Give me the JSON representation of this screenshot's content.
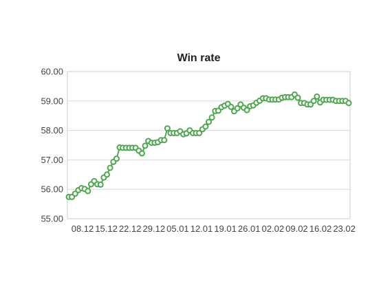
{
  "chart_data": {
    "type": "line",
    "title": "Win rate",
    "xlabel": "",
    "ylabel": "",
    "ylim": [
      55,
      60
    ],
    "y_ticks": [
      "55.00",
      "56.00",
      "57.00",
      "58.00",
      "59.00",
      "60.00"
    ],
    "x_tick_labels": [
      "08.12",
      "15.12",
      "22.12",
      "29.12",
      "05.01",
      "12.01",
      "19.01",
      "26.01",
      "02.02",
      "09.02",
      "16.02",
      "23.02"
    ],
    "grid": true,
    "legend": "none",
    "colors": {
      "series": "#4ea64e"
    },
    "series": [
      {
        "values": [
          55.74,
          55.74,
          55.85,
          55.97,
          56.04,
          56.01,
          55.94,
          56.17,
          56.28,
          56.17,
          56.16,
          56.4,
          56.5,
          56.73,
          56.93,
          57.04,
          57.42,
          57.41,
          57.41,
          57.41,
          57.41,
          57.41,
          57.31,
          57.22,
          57.48,
          57.64,
          57.58,
          57.58,
          57.6,
          57.67,
          57.67,
          58.07,
          57.91,
          57.91,
          57.91,
          57.97,
          57.87,
          57.9,
          58.0,
          57.91,
          57.91,
          57.91,
          58.04,
          58.13,
          58.29,
          58.44,
          58.66,
          58.67,
          58.79,
          58.84,
          58.9,
          58.8,
          58.65,
          58.75,
          58.88,
          58.77,
          58.69,
          58.82,
          58.85,
          58.94,
          59.01,
          59.09,
          59.09,
          59.05,
          59.05,
          59.05,
          59.05,
          59.11,
          59.13,
          59.13,
          59.13,
          59.22,
          59.11,
          58.93,
          58.93,
          58.88,
          58.88,
          59.0,
          59.15,
          58.95,
          59.04,
          59.04,
          59.04,
          59.04,
          59.0,
          59.0,
          59.0,
          59.0,
          58.93
        ]
      }
    ]
  }
}
